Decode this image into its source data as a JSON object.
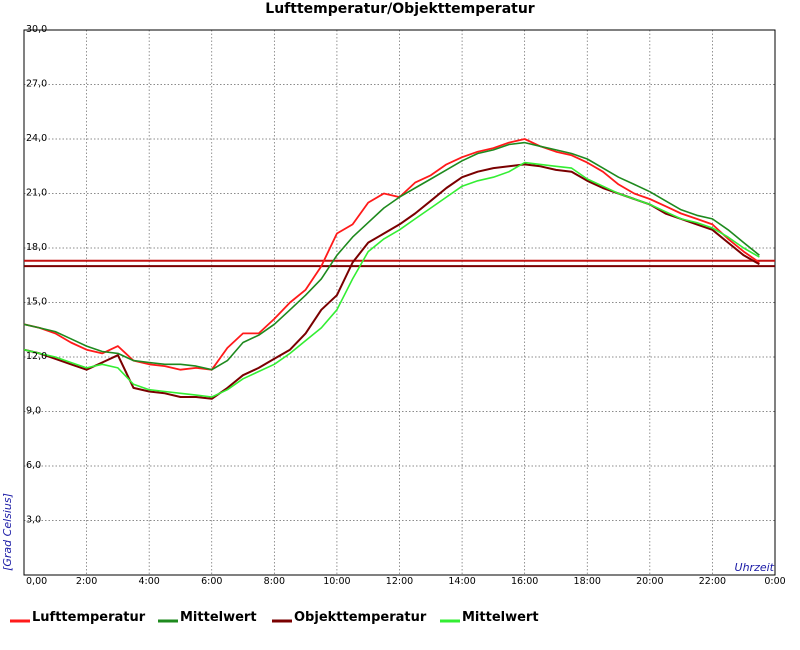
{
  "chart_data": {
    "type": "line",
    "title": "Lufttemperatur/Objekttemperatur",
    "xlabel": "Uhrzeit",
    "ylabel": "[Grad Celsius]",
    "xlim": [
      0,
      24
    ],
    "ylim": [
      0,
      30
    ],
    "x_ticks": [
      "0,00",
      "2:00",
      "4:00",
      "6:00",
      "8:00",
      "10:00",
      "12:00",
      "14:00",
      "16:00",
      "18:00",
      "20:00",
      "22:00",
      "0:00"
    ],
    "y_ticks": [
      "3,0",
      "6,0",
      "9,0",
      "12,0",
      "15,0",
      "18,0",
      "21,0",
      "24,0",
      "27,0",
      "30,0"
    ],
    "grid": true,
    "legend_position": "bottom",
    "reference_lines": [
      {
        "y": 17.3,
        "color": "#c41010"
      },
      {
        "y": 17.0,
        "color": "#7a0000"
      }
    ],
    "series": [
      {
        "name": "Lufttemperatur",
        "color": "#ff1a1a",
        "x": [
          0,
          0.5,
          1,
          1.5,
          2,
          2.5,
          3,
          3.5,
          4,
          4.5,
          5,
          5.5,
          6,
          6.5,
          7,
          7.5,
          8,
          8.5,
          9,
          9.5,
          10,
          10.5,
          11,
          11.5,
          12,
          12.5,
          13,
          13.5,
          14,
          14.5,
          15,
          15.5,
          16,
          16.5,
          17,
          17.5,
          18,
          18.5,
          19,
          19.5,
          20,
          20.5,
          21,
          21.5,
          22,
          22.5,
          23,
          23.5
        ],
        "y": [
          13.8,
          13.6,
          13.3,
          12.8,
          12.4,
          12.2,
          12.6,
          11.8,
          11.6,
          11.5,
          11.3,
          11.4,
          11.3,
          12.5,
          13.3,
          13.3,
          14.1,
          15.0,
          15.7,
          17.0,
          18.8,
          19.3,
          20.5,
          21.0,
          20.8,
          21.6,
          22.0,
          22.6,
          23.0,
          23.3,
          23.5,
          23.8,
          24.0,
          23.6,
          23.3,
          23.1,
          22.7,
          22.2,
          21.5,
          21.0,
          20.7,
          20.3,
          19.9,
          19.6,
          19.3,
          18.5,
          17.8,
          17.2
        ]
      },
      {
        "name": "Mittelwert",
        "color": "#1e8a1e",
        "x": [
          0,
          0.5,
          1,
          1.5,
          2,
          2.5,
          3,
          3.5,
          4,
          4.5,
          5,
          5.5,
          6,
          6.5,
          7,
          7.5,
          8,
          8.5,
          9,
          9.5,
          10,
          10.5,
          11,
          11.5,
          12,
          12.5,
          13,
          13.5,
          14,
          14.5,
          15,
          15.5,
          16,
          16.5,
          17,
          17.5,
          18,
          18.5,
          19,
          19.5,
          20,
          20.5,
          21,
          21.5,
          22,
          22.5,
          23,
          23.5
        ],
        "y": [
          13.8,
          13.6,
          13.4,
          13.0,
          12.6,
          12.3,
          12.2,
          11.8,
          11.7,
          11.6,
          11.6,
          11.5,
          11.3,
          11.8,
          12.8,
          13.2,
          13.8,
          14.6,
          15.4,
          16.3,
          17.6,
          18.6,
          19.4,
          20.2,
          20.8,
          21.3,
          21.8,
          22.3,
          22.8,
          23.2,
          23.4,
          23.7,
          23.8,
          23.6,
          23.4,
          23.2,
          22.9,
          22.4,
          21.9,
          21.5,
          21.1,
          20.6,
          20.1,
          19.8,
          19.6,
          19.0,
          18.3,
          17.6
        ]
      },
      {
        "name": "Objekttemperatur",
        "color": "#7a0000",
        "x": [
          0,
          0.5,
          1,
          1.5,
          2,
          2.5,
          3,
          3.5,
          4,
          4.5,
          5,
          5.5,
          6,
          6.5,
          7,
          7.5,
          8,
          8.5,
          9,
          9.5,
          10,
          10.5,
          11,
          11.5,
          12,
          12.5,
          13,
          13.5,
          14,
          14.5,
          15,
          15.5,
          16,
          16.5,
          17,
          17.5,
          18,
          18.5,
          19,
          19.5,
          20,
          20.5,
          21,
          21.5,
          22,
          22.5,
          23,
          23.5
        ],
        "y": [
          12.4,
          12.2,
          11.9,
          11.6,
          11.3,
          11.7,
          12.1,
          10.3,
          10.1,
          10.0,
          9.8,
          9.8,
          9.7,
          10.3,
          11.0,
          11.4,
          11.9,
          12.4,
          13.3,
          14.6,
          15.4,
          17.2,
          18.3,
          18.8,
          19.3,
          19.9,
          20.6,
          21.3,
          21.9,
          22.2,
          22.4,
          22.5,
          22.6,
          22.5,
          22.3,
          22.2,
          21.7,
          21.3,
          21.0,
          20.7,
          20.4,
          19.9,
          19.6,
          19.3,
          19.0,
          18.3,
          17.6,
          17.1
        ]
      },
      {
        "name": "Mittelwert",
        "color": "#33ee33",
        "x": [
          0,
          0.5,
          1,
          1.5,
          2,
          2.5,
          3,
          3.5,
          4,
          4.5,
          5,
          5.5,
          6,
          6.5,
          7,
          7.5,
          8,
          8.5,
          9,
          9.5,
          10,
          10.5,
          11,
          11.5,
          12,
          12.5,
          13,
          13.5,
          14,
          14.5,
          15,
          15.5,
          16,
          16.5,
          17,
          17.5,
          18,
          18.5,
          19,
          19.5,
          20,
          20.5,
          21,
          21.5,
          22,
          22.5,
          23,
          23.5
        ],
        "y": [
          12.4,
          12.2,
          12.0,
          11.7,
          11.4,
          11.6,
          11.4,
          10.5,
          10.2,
          10.1,
          10.0,
          9.9,
          9.8,
          10.2,
          10.8,
          11.2,
          11.6,
          12.2,
          12.9,
          13.6,
          14.6,
          16.3,
          17.8,
          18.5,
          19.0,
          19.6,
          20.2,
          20.8,
          21.4,
          21.7,
          21.9,
          22.2,
          22.7,
          22.6,
          22.5,
          22.4,
          21.8,
          21.4,
          21.0,
          20.7,
          20.4,
          20.0,
          19.6,
          19.4,
          19.1,
          18.6,
          18.0,
          17.5
        ]
      }
    ]
  }
}
